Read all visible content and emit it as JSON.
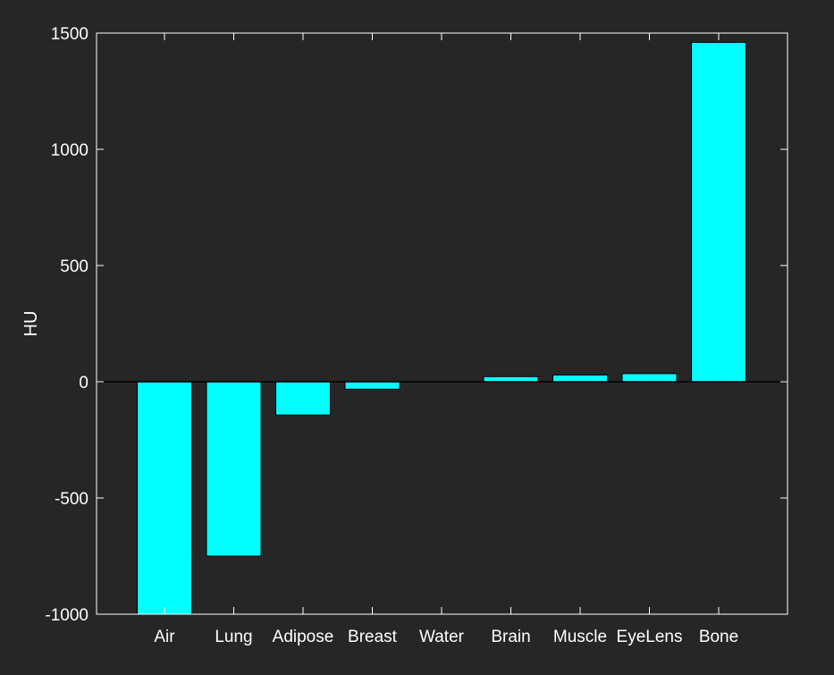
{
  "chart_data": {
    "type": "bar",
    "title": "",
    "xlabel": "",
    "ylabel": "HU",
    "categories": [
      "Air",
      "Lung",
      "Adipose",
      "Breast",
      "Water",
      "Brain",
      "Muscle",
      "EyeLens",
      "Bone"
    ],
    "values": [
      -1000,
      -750,
      -143,
      -32,
      0,
      22,
      29,
      35,
      1460
    ],
    "ylim": [
      -1000,
      1500
    ],
    "yticks": [
      -1000,
      -500,
      0,
      500,
      1000,
      1500
    ],
    "grid": false,
    "legend": "none",
    "colors": {
      "background": "#262626",
      "bar_fill": "#00ffff",
      "bar_edge": "#000000",
      "axis": "#ffffff",
      "zero_line": "#000000",
      "text": "#ffffff"
    }
  }
}
